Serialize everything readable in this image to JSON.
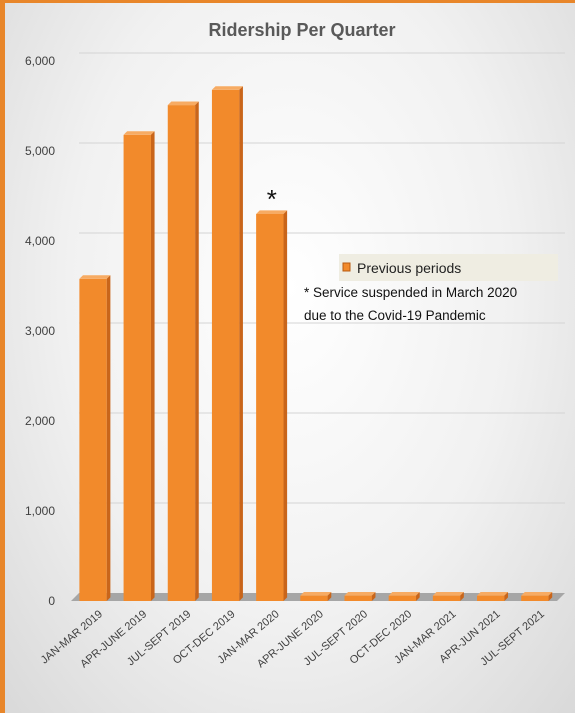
{
  "chart_data": {
    "type": "bar",
    "title": "Ridership Per Quarter",
    "categories": [
      "JAN-MAR 2019",
      "APR-JUNE 2019",
      "JUL-SEPT 2019",
      "OCT-DEC 2019",
      "JAN-MAR 2020",
      "APR-JUNE 2020",
      "JUL-SEPT 2020",
      "OCT-DEC 2020",
      "JAN-MAR 2021",
      "APR-JUN 2021",
      "JUL-SEPT 2021"
    ],
    "series": [
      {
        "name": "Previous periods",
        "values": [
          3580,
          5180,
          5510,
          5680,
          4300,
          60,
          60,
          60,
          60,
          60,
          60
        ],
        "color": "#f28a2b"
      }
    ],
    "ylim": [
      0,
      6000
    ],
    "yticks": [
      "0",
      "1,000",
      "2,000",
      "3,000",
      "4,000",
      "5,000",
      "6,000"
    ],
    "grid": true,
    "legend": "right",
    "annotation": {
      "marker": "*",
      "target": "JAN-MAR 2020",
      "lines": [
        "* Service suspended in March 2020",
        "due to the  Covid-19 Pandemic"
      ]
    }
  }
}
